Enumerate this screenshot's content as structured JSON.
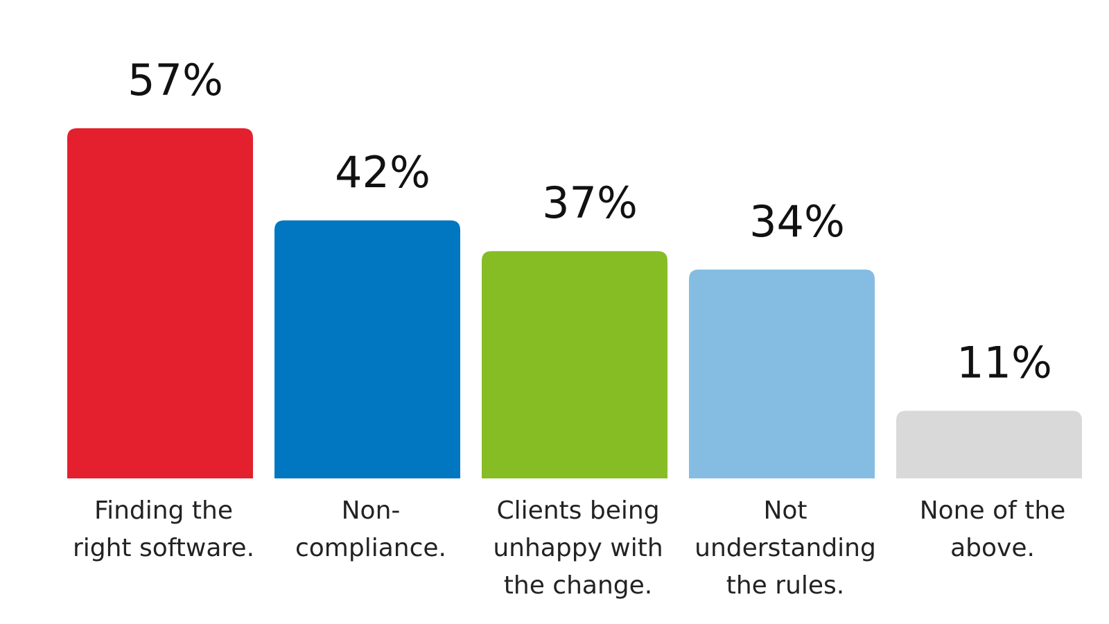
{
  "chart_data": {
    "type": "bar",
    "title": "",
    "xlabel": "",
    "ylabel": "",
    "ylim": [
      0,
      57
    ],
    "grid": false,
    "legend": "none",
    "value_suffix": "%",
    "categories": [
      [
        "Finding the",
        "right software."
      ],
      [
        "Non-",
        "compliance."
      ],
      [
        "Clients being",
        "unhappy with",
        "the change."
      ],
      [
        "Not",
        "understanding",
        "the rules."
      ],
      [
        "None of the",
        "above."
      ]
    ],
    "values": [
      57,
      42,
      37,
      34,
      11
    ],
    "value_labels": [
      "57%",
      "42%",
      "37%",
      "34%",
      "11%"
    ],
    "colors": [
      "#E4202F",
      "#0077C0",
      "#86BC24",
      "#84BDE1",
      "#D9D9D9"
    ]
  }
}
